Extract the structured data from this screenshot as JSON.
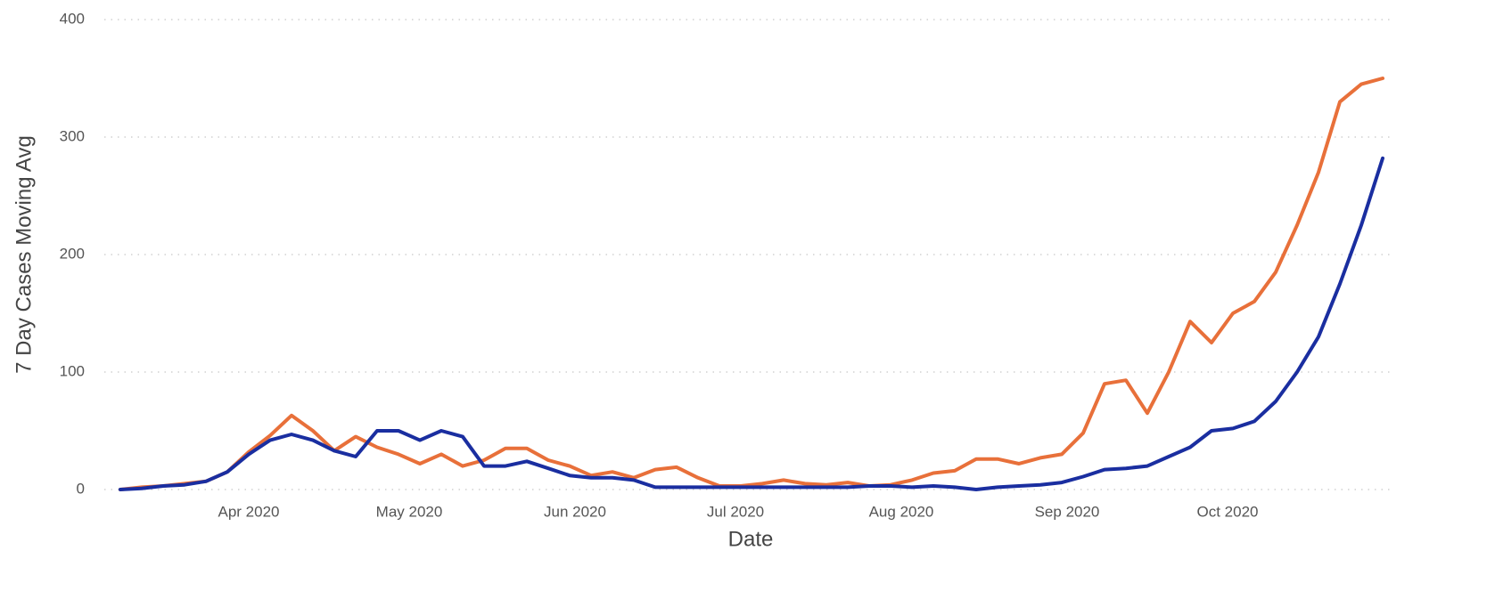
{
  "chart_data": {
    "type": "line",
    "x_label": "Date",
    "y_label": "7 Day Cases Moving Avg",
    "x": [
      0,
      4,
      8,
      12,
      16,
      20,
      24,
      28,
      32,
      36,
      40,
      44,
      48,
      52,
      56,
      60,
      64,
      68,
      72,
      76,
      80,
      84,
      88,
      92,
      96,
      100,
      104,
      108,
      112,
      116,
      120,
      124,
      128,
      132,
      136,
      140,
      144,
      148,
      152,
      156,
      160,
      164,
      168,
      172,
      176,
      180,
      184,
      188,
      192,
      196,
      200,
      204,
      208,
      212,
      216,
      220,
      224,
      228,
      232,
      236
    ],
    "xlim": [
      -3,
      238
    ],
    "xticks": [
      {
        "value": 24,
        "label": "Apr 2020"
      },
      {
        "value": 54,
        "label": "May 2020"
      },
      {
        "value": 85,
        "label": "Jun 2020"
      },
      {
        "value": 115,
        "label": "Jul 2020"
      },
      {
        "value": 146,
        "label": "Aug 2020"
      },
      {
        "value": 177,
        "label": "Sep 2020"
      },
      {
        "value": 207,
        "label": "Oct 2020"
      }
    ],
    "ylim": [
      0,
      400
    ],
    "yticks": [
      0,
      100,
      200,
      300,
      400
    ],
    "grid": true,
    "series": [
      {
        "color": "#e8703a",
        "values": [
          0,
          2,
          3,
          5,
          7,
          15,
          32,
          46,
          63,
          50,
          33,
          45,
          36,
          30,
          22,
          30,
          20,
          25,
          35,
          35,
          25,
          20,
          12,
          15,
          10,
          17,
          19,
          10,
          3,
          3,
          5,
          8,
          5,
          4,
          6,
          3,
          4,
          8,
          14,
          16,
          26,
          26,
          22,
          27,
          30,
          48,
          90,
          93,
          65,
          100,
          143,
          125,
          150,
          160,
          185,
          225,
          270,
          330,
          345,
          350
        ]
      },
      {
        "color": "#1a2ea0",
        "values": [
          0,
          1,
          3,
          4,
          7,
          15,
          30,
          42,
          47,
          42,
          33,
          28,
          50,
          50,
          42,
          50,
          45,
          20,
          20,
          24,
          18,
          12,
          10,
          10,
          8,
          2,
          2,
          2,
          2,
          2,
          2,
          2,
          2,
          2,
          2,
          3,
          3,
          2,
          3,
          2,
          0,
          2,
          3,
          4,
          6,
          11,
          17,
          18,
          20,
          28,
          36,
          50,
          52,
          58,
          75,
          100,
          130,
          175,
          225,
          282
        ]
      }
    ]
  }
}
